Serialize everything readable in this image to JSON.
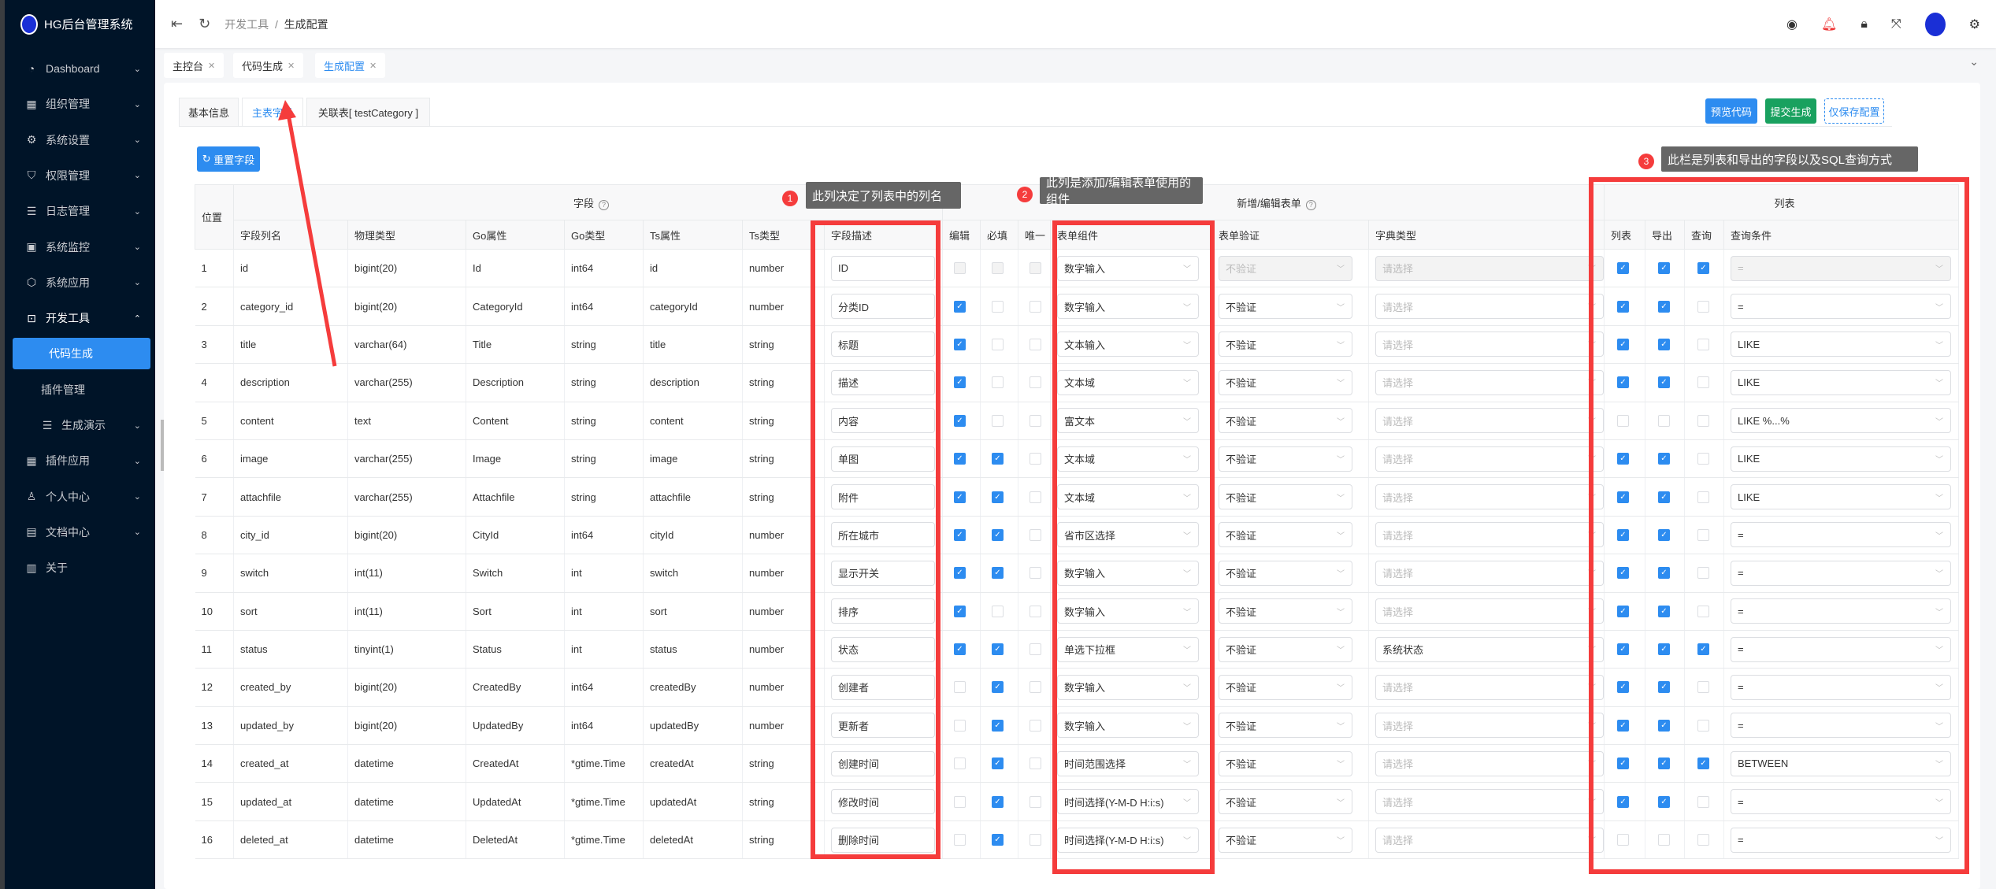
{
  "app": {
    "title": "HG后台管理系统"
  },
  "sidebar": {
    "items": [
      {
        "label": "Dashboard",
        "icon": "dashboard-icon",
        "glyph": "◔",
        "chevron": "⌄"
      },
      {
        "label": "组织管理",
        "icon": "grid-icon",
        "glyph": "▦",
        "chevron": "⌄"
      },
      {
        "label": "系统设置",
        "icon": "gear-icon",
        "glyph": "⚙",
        "chevron": "⌄"
      },
      {
        "label": "权限管理",
        "icon": "shield-icon",
        "glyph": "⛉",
        "chevron": "⌄"
      },
      {
        "label": "日志管理",
        "icon": "list-icon",
        "glyph": "☰",
        "chevron": "⌄"
      },
      {
        "label": "系统监控",
        "icon": "monitor-icon",
        "glyph": "▣",
        "chevron": "⌄"
      },
      {
        "label": "系统应用",
        "icon": "cube-icon",
        "glyph": "⬡",
        "chevron": "⌄"
      },
      {
        "label": "开发工具",
        "icon": "terminal-icon",
        "glyph": "⊡",
        "chevron": "⌃",
        "state": "open"
      },
      {
        "label": "代码生成",
        "state": "active",
        "level": "sub"
      },
      {
        "label": "插件管理",
        "level": "sub"
      },
      {
        "label": "生成演示",
        "icon": "menu-icon",
        "glyph": "☰",
        "chevron": "⌄",
        "level": "sub2"
      },
      {
        "label": "插件应用",
        "icon": "grid-icon",
        "glyph": "▦",
        "chevron": "⌄"
      },
      {
        "label": "个人中心",
        "icon": "user-icon",
        "glyph": "♙",
        "chevron": "⌄"
      },
      {
        "label": "文档中心",
        "icon": "document-icon",
        "glyph": "▤",
        "chevron": "⌄"
      },
      {
        "label": "关于",
        "icon": "board-icon",
        "glyph": "▥"
      }
    ]
  },
  "header": {
    "breadcrumb": [
      "开发工具",
      "生成配置"
    ],
    "separator": "/",
    "icons": [
      "github-icon",
      "bell-icon",
      "lock-icon",
      "fullscreen-icon",
      "avatar",
      "settings-icon"
    ]
  },
  "tags": [
    {
      "label": "主控台"
    },
    {
      "label": "代码生成"
    },
    {
      "label": "生成配置",
      "current": true
    }
  ],
  "tabs": [
    {
      "label": "基本信息"
    },
    {
      "label": "主表字段",
      "current": true
    },
    {
      "label": "关联表[ testCategory ]"
    }
  ],
  "actions": {
    "preview": "预览代码",
    "submit": "提交生成",
    "save": "仅保存配置",
    "reset": "重置字段"
  },
  "colors": {
    "primary": "#2d8cf0",
    "success": "#19a15f",
    "sidebar": "#001428",
    "annotation": "#f53c3c"
  },
  "table": {
    "group_headers": {
      "position": "位置",
      "field": "字段",
      "form": "新增/编辑表单",
      "list": "列表"
    },
    "columns": [
      "字段列名",
      "物理类型",
      "Go属性",
      "Go类型",
      "Ts属性",
      "Ts类型",
      "字段描述",
      "编辑",
      "必填",
      "唯一",
      "表单组件",
      "表单验证",
      "字典类型",
      "列表",
      "导出",
      "查询",
      "查询条件"
    ],
    "rows": [
      {
        "pos": "1",
        "name": "id",
        "sql": "bigint(20)",
        "go": "Id",
        "goType": "int64",
        "ts": "id",
        "tsType": "number",
        "desc": "ID",
        "edit": false,
        "required": false,
        "unique": false,
        "component": "数字输入",
        "validation": "不验证",
        "dict": "请选择",
        "list": true,
        "export": true,
        "query": true,
        "cond": "=",
        "locked": true
      },
      {
        "pos": "2",
        "name": "category_id",
        "sql": "bigint(20)",
        "go": "CategoryId",
        "goType": "int64",
        "ts": "categoryId",
        "tsType": "number",
        "desc": "分类ID",
        "edit": true,
        "required": false,
        "unique": false,
        "component": "数字输入",
        "validation": "不验证",
        "dict": "请选择",
        "list": true,
        "export": true,
        "query": false,
        "cond": "="
      },
      {
        "pos": "3",
        "name": "title",
        "sql": "varchar(64)",
        "go": "Title",
        "goType": "string",
        "ts": "title",
        "tsType": "string",
        "desc": "标题",
        "edit": true,
        "required": false,
        "unique": false,
        "component": "文本输入",
        "validation": "不验证",
        "dict": "请选择",
        "list": true,
        "export": true,
        "query": false,
        "cond": "LIKE"
      },
      {
        "pos": "4",
        "name": "description",
        "sql": "varchar(255)",
        "go": "Description",
        "goType": "string",
        "ts": "description",
        "tsType": "string",
        "desc": "描述",
        "edit": true,
        "required": false,
        "unique": false,
        "component": "文本域",
        "validation": "不验证",
        "dict": "请选择",
        "list": true,
        "export": true,
        "query": false,
        "cond": "LIKE"
      },
      {
        "pos": "5",
        "name": "content",
        "sql": "text",
        "go": "Content",
        "goType": "string",
        "ts": "content",
        "tsType": "string",
        "desc": "内容",
        "edit": true,
        "required": false,
        "unique": false,
        "component": "富文本",
        "validation": "不验证",
        "dict": "请选择",
        "list": false,
        "export": false,
        "query": false,
        "cond": "LIKE %...%"
      },
      {
        "pos": "6",
        "name": "image",
        "sql": "varchar(255)",
        "go": "Image",
        "goType": "string",
        "ts": "image",
        "tsType": "string",
        "desc": "单图",
        "edit": true,
        "required": true,
        "unique": false,
        "component": "文本域",
        "validation": "不验证",
        "dict": "请选择",
        "list": true,
        "export": true,
        "query": false,
        "cond": "LIKE"
      },
      {
        "pos": "7",
        "name": "attachfile",
        "sql": "varchar(255)",
        "go": "Attachfile",
        "goType": "string",
        "ts": "attachfile",
        "tsType": "string",
        "desc": "附件",
        "edit": true,
        "required": true,
        "unique": false,
        "component": "文本域",
        "validation": "不验证",
        "dict": "请选择",
        "list": true,
        "export": true,
        "query": false,
        "cond": "LIKE"
      },
      {
        "pos": "8",
        "name": "city_id",
        "sql": "bigint(20)",
        "go": "CityId",
        "goType": "int64",
        "ts": "cityId",
        "tsType": "number",
        "desc": "所在城市",
        "edit": true,
        "required": true,
        "unique": false,
        "component": "省市区选择",
        "validation": "不验证",
        "dict": "请选择",
        "list": true,
        "export": true,
        "query": false,
        "cond": "="
      },
      {
        "pos": "9",
        "name": "switch",
        "sql": "int(11)",
        "go": "Switch",
        "goType": "int",
        "ts": "switch",
        "tsType": "number",
        "desc": "显示开关",
        "edit": true,
        "required": true,
        "unique": false,
        "component": "数字输入",
        "validation": "不验证",
        "dict": "请选择",
        "list": true,
        "export": true,
        "query": false,
        "cond": "="
      },
      {
        "pos": "10",
        "name": "sort",
        "sql": "int(11)",
        "go": "Sort",
        "goType": "int",
        "ts": "sort",
        "tsType": "number",
        "desc": "排序",
        "edit": true,
        "required": false,
        "unique": false,
        "component": "数字输入",
        "validation": "不验证",
        "dict": "请选择",
        "list": true,
        "export": true,
        "query": false,
        "cond": "="
      },
      {
        "pos": "11",
        "name": "status",
        "sql": "tinyint(1)",
        "go": "Status",
        "goType": "int",
        "ts": "status",
        "tsType": "number",
        "desc": "状态",
        "edit": true,
        "required": true,
        "unique": false,
        "component": "单选下拉框",
        "validation": "不验证",
        "dict": "系统状态",
        "dictSet": true,
        "list": true,
        "export": true,
        "query": true,
        "cond": "="
      },
      {
        "pos": "12",
        "name": "created_by",
        "sql": "bigint(20)",
        "go": "CreatedBy",
        "goType": "int64",
        "ts": "createdBy",
        "tsType": "number",
        "desc": "创建者",
        "edit": false,
        "required": true,
        "unique": false,
        "component": "数字输入",
        "validation": "不验证",
        "dict": "请选择",
        "list": true,
        "export": true,
        "query": false,
        "cond": "="
      },
      {
        "pos": "13",
        "name": "updated_by",
        "sql": "bigint(20)",
        "go": "UpdatedBy",
        "goType": "int64",
        "ts": "updatedBy",
        "tsType": "number",
        "desc": "更新者",
        "edit": false,
        "required": true,
        "unique": false,
        "component": "数字输入",
        "validation": "不验证",
        "dict": "请选择",
        "list": true,
        "export": true,
        "query": false,
        "cond": "="
      },
      {
        "pos": "14",
        "name": "created_at",
        "sql": "datetime",
        "go": "CreatedAt",
        "goType": "*gtime.Time",
        "ts": "createdAt",
        "tsType": "string",
        "desc": "创建时间",
        "edit": false,
        "required": true,
        "unique": false,
        "component": "时间范围选择",
        "validation": "不验证",
        "dict": "请选择",
        "list": true,
        "export": true,
        "query": true,
        "cond": "BETWEEN"
      },
      {
        "pos": "15",
        "name": "updated_at",
        "sql": "datetime",
        "go": "UpdatedAt",
        "goType": "*gtime.Time",
        "ts": "updatedAt",
        "tsType": "string",
        "desc": "修改时间",
        "edit": false,
        "required": true,
        "unique": false,
        "component": "时间选择(Y-M-D H:i:s)",
        "validation": "不验证",
        "dict": "请选择",
        "list": true,
        "export": true,
        "query": false,
        "cond": "="
      },
      {
        "pos": "16",
        "name": "deleted_at",
        "sql": "datetime",
        "go": "DeletedAt",
        "goType": "*gtime.Time",
        "ts": "deletedAt",
        "tsType": "string",
        "desc": "删除时间",
        "edit": false,
        "required": true,
        "unique": false,
        "component": "时间选择(Y-M-D H:i:s)",
        "validation": "不验证",
        "dict": "请选择",
        "list": false,
        "export": false,
        "query": false,
        "cond": "="
      }
    ]
  },
  "annotations": [
    {
      "num": "1",
      "text": "此列决定了列表中的列名"
    },
    {
      "num": "2",
      "text": "此列是添加/编辑表单使用的组件"
    },
    {
      "num": "3",
      "text": "此栏是列表和导出的字段以及SQL查询方式"
    }
  ]
}
